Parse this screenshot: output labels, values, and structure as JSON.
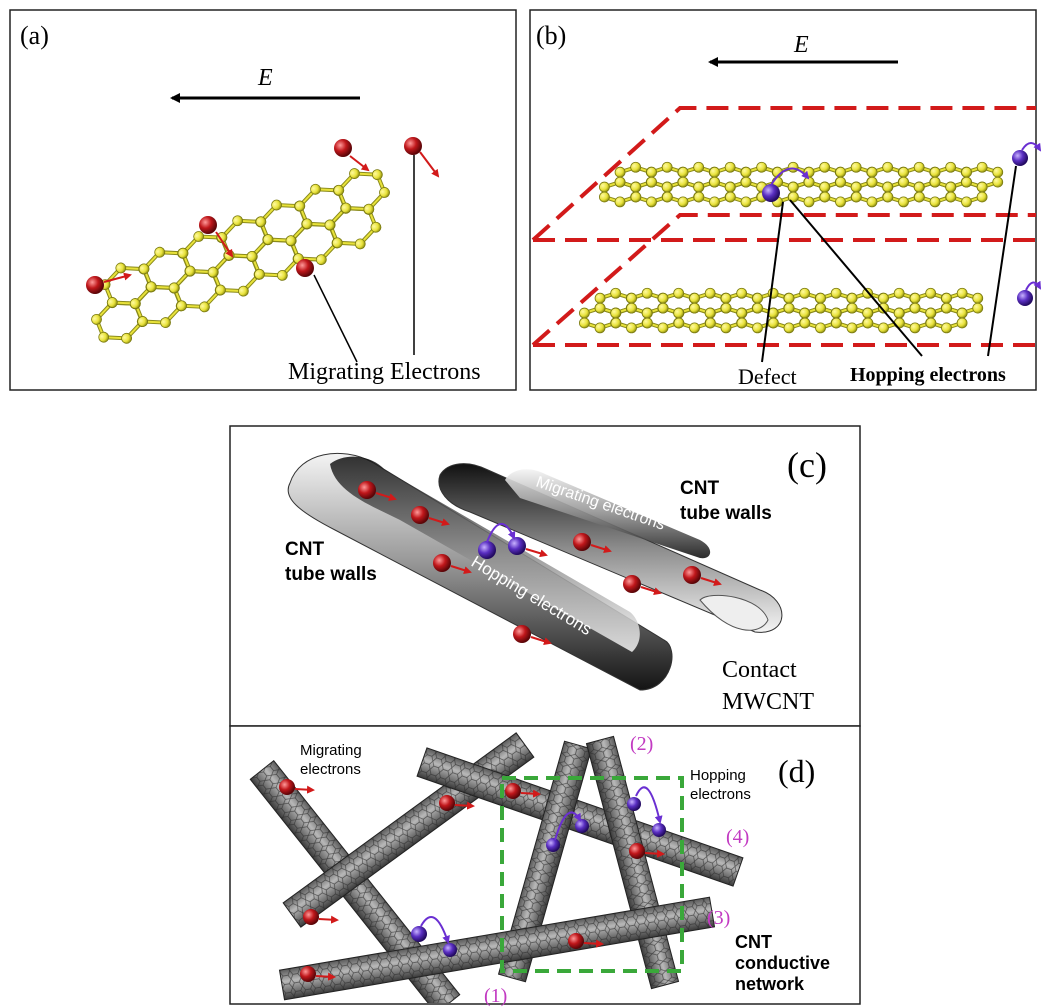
{
  "panel_a": {
    "label": "(a)",
    "field": "E",
    "annotation": "Migrating Electrons"
  },
  "panel_b": {
    "label": "(b)",
    "field": "E",
    "defect": "Defect",
    "hopping": "Hopping electrons"
  },
  "panel_c": {
    "label": "(c)",
    "cnt_left_1": "CNT",
    "cnt_left_2": "tube walls",
    "cnt_right_1": "CNT",
    "cnt_right_2": "tube walls",
    "migrating": "Migrating electrons",
    "hopping": "Hopping electrons",
    "contact_1": "Contact",
    "contact_2": "MWCNT"
  },
  "panel_d": {
    "label": "(d)",
    "migrating_1": "Migrating",
    "migrating_2": "electrons",
    "hopping_1": "Hopping",
    "hopping_2": "electrons",
    "j1": "(1)",
    "j2": "(2)",
    "j3": "(3)",
    "j4": "(4)",
    "network_1": "CNT",
    "network_2": "conductive",
    "network_3": "network"
  },
  "colors": {
    "carbon": "#e8e23a",
    "bond": "#8a8a1a",
    "electron_red": "#c0171b",
    "electron_purple": "#5a2fc2",
    "defect_line": "#d21a1a",
    "dashed_box": "#3aa83a",
    "junction_label": "#c23ac2"
  }
}
